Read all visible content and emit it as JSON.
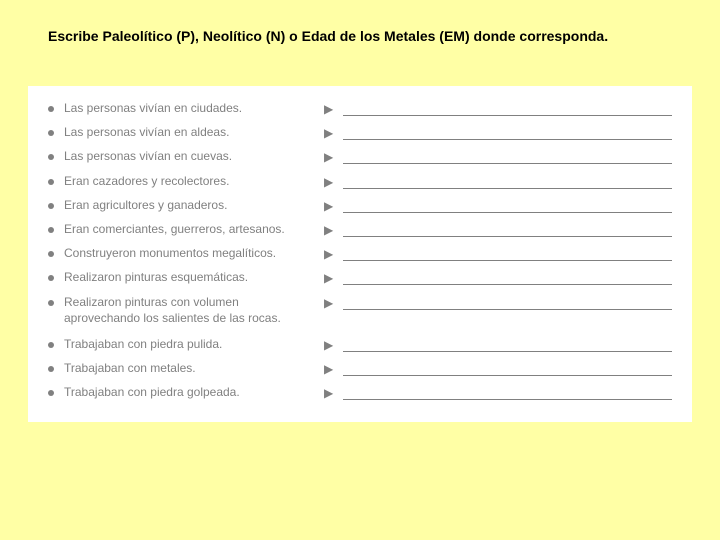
{
  "instruction": "Escribe Paleolítico (P), Neolítico (N) o Edad de los Metales (EM) donde corresponda.",
  "colors": {
    "page_bg": "#ffffa5",
    "worksheet_bg": "#ffffff",
    "text_instruction": "#000000",
    "text_item": "#808080",
    "line": "#808080"
  },
  "typography": {
    "instruction_fontsize": 14,
    "instruction_weight": "bold",
    "item_fontsize": 12,
    "font_family": "Arial"
  },
  "items": [
    {
      "text": "Las personas vivían en ciudades."
    },
    {
      "text": "Las personas vivían en aldeas."
    },
    {
      "text": "Las personas vivían en cuevas."
    },
    {
      "text": "Eran cazadores y recolectores."
    },
    {
      "text": "Eran agricultores y ganaderos."
    },
    {
      "text": "Eran comerciantes, guerreros, artesanos."
    },
    {
      "text": "Construyeron monumentos megalíticos."
    },
    {
      "text": "Realizaron pinturas esquemáticas."
    },
    {
      "text": "Realizaron pinturas con volumen aprovechando los salientes de las rocas."
    },
    {
      "text": "Trabajaban con piedra pulida."
    },
    {
      "text": "Trabajaban con metales."
    },
    {
      "text": "Trabajaban con piedra golpeada."
    }
  ]
}
